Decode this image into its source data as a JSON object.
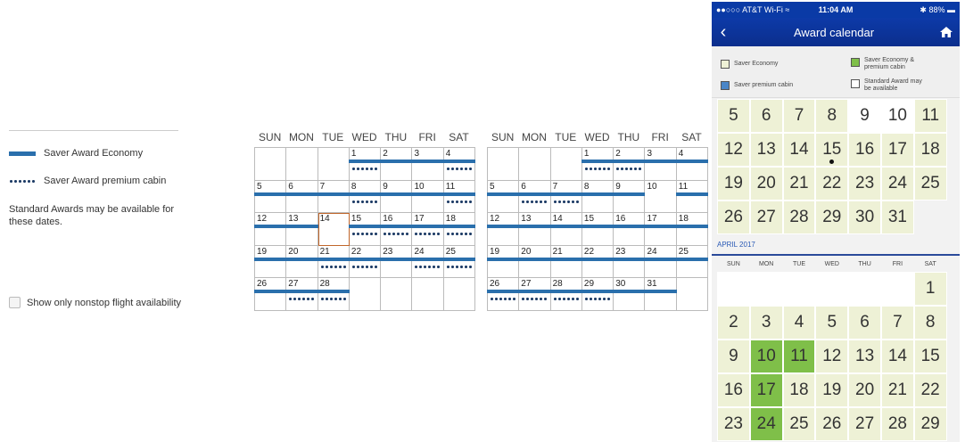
{
  "legend": {
    "economy": "Saver Award Economy",
    "premium": "Saver Award premium cabin",
    "standard": "Standard Awards may be available for these dates.",
    "nonstop": "Show only nonstop flight availability"
  },
  "calendar": {
    "days": [
      "SUN",
      "MON",
      "TUE",
      "WED",
      "THU",
      "FRI",
      "SAT"
    ],
    "feb": [
      [
        {
          "d": ""
        },
        {
          "d": ""
        },
        {
          "d": ""
        },
        {
          "d": "1",
          "e": 1,
          "p": 1
        },
        {
          "d": "2",
          "e": 1
        },
        {
          "d": "3",
          "e": 1
        },
        {
          "d": "4",
          "e": 1,
          "p": 1
        }
      ],
      [
        {
          "d": "5",
          "e": 1
        },
        {
          "d": "6",
          "e": 1
        },
        {
          "d": "7",
          "e": 1
        },
        {
          "d": "8",
          "e": 1,
          "p": 1
        },
        {
          "d": "9",
          "e": 1
        },
        {
          "d": "10",
          "e": 1
        },
        {
          "d": "11",
          "e": 1,
          "p": 1
        }
      ],
      [
        {
          "d": "12",
          "e": 1
        },
        {
          "d": "13",
          "e": 1
        },
        {
          "d": "14",
          "sel": 1
        },
        {
          "d": "15",
          "e": 1,
          "p": 1
        },
        {
          "d": "16",
          "e": 1,
          "p": 1
        },
        {
          "d": "17",
          "e": 1,
          "p": 1
        },
        {
          "d": "18",
          "e": 1,
          "p": 1
        }
      ],
      [
        {
          "d": "19",
          "e": 1
        },
        {
          "d": "20",
          "e": 1
        },
        {
          "d": "21",
          "e": 1,
          "p": 1
        },
        {
          "d": "22",
          "e": 1,
          "p": 1
        },
        {
          "d": "23",
          "e": 1
        },
        {
          "d": "24",
          "e": 1,
          "p": 1
        },
        {
          "d": "25",
          "e": 1,
          "p": 1
        }
      ],
      [
        {
          "d": "26",
          "e": 1
        },
        {
          "d": "27",
          "e": 1,
          "p": 1
        },
        {
          "d": "28",
          "e": 1,
          "p": 1
        },
        {
          "d": ""
        },
        {
          "d": ""
        },
        {
          "d": ""
        },
        {
          "d": ""
        }
      ]
    ],
    "mar": [
      [
        {
          "d": ""
        },
        {
          "d": ""
        },
        {
          "d": ""
        },
        {
          "d": "1",
          "e": 1,
          "p": 1
        },
        {
          "d": "2",
          "e": 1,
          "p": 1
        },
        {
          "d": "3",
          "e": 1
        },
        {
          "d": "4",
          "e": 1
        }
      ],
      [
        {
          "d": "5",
          "e": 1
        },
        {
          "d": "6",
          "e": 1,
          "p": 1
        },
        {
          "d": "7",
          "e": 1,
          "p": 1
        },
        {
          "d": "8",
          "e": 1
        },
        {
          "d": "9",
          "e": 1
        },
        {
          "d": "10"
        },
        {
          "d": "11",
          "e": 1
        }
      ],
      [
        {
          "d": "12",
          "e": 1
        },
        {
          "d": "13",
          "e": 1
        },
        {
          "d": "14",
          "e": 1
        },
        {
          "d": "15",
          "e": 1
        },
        {
          "d": "16",
          "e": 1
        },
        {
          "d": "17",
          "e": 1
        },
        {
          "d": "18",
          "e": 1
        }
      ],
      [
        {
          "d": "19",
          "e": 1
        },
        {
          "d": "20",
          "e": 1
        },
        {
          "d": "21",
          "e": 1
        },
        {
          "d": "22",
          "e": 1
        },
        {
          "d": "23",
          "e": 1
        },
        {
          "d": "24",
          "e": 1
        },
        {
          "d": "25",
          "e": 1
        }
      ],
      [
        {
          "d": "26",
          "e": 1,
          "p": 1
        },
        {
          "d": "27",
          "e": 1,
          "p": 1
        },
        {
          "d": "28",
          "e": 1,
          "p": 1
        },
        {
          "d": "29",
          "e": 1,
          "p": 1
        },
        {
          "d": "30",
          "e": 1
        },
        {
          "d": "31",
          "e": 1
        },
        {
          "d": ""
        }
      ]
    ]
  },
  "phone": {
    "status_left": "●●○○○ AT&T Wi-Fi ≈",
    "time": "11:04 AM",
    "status_right": "✱ 88% ▬",
    "title": "Award calendar",
    "legend": {
      "saver_economy": "Saver Economy",
      "saver_both": "Saver Economy & premium cabin",
      "saver_premium": "Saver premium cabin",
      "standard": "Standard Award may be available"
    },
    "colors": {
      "cream": "#eef1d6",
      "green": "#7fbf49",
      "blue": "#4a86c8"
    },
    "march_rows": [
      [
        {
          "d": "5",
          "s": "c"
        },
        {
          "d": "6",
          "s": "c"
        },
        {
          "d": "7",
          "s": "c"
        },
        {
          "d": "8",
          "s": "c"
        },
        {
          "d": "9",
          "s": "w"
        },
        {
          "d": "10",
          "s": "w"
        },
        {
          "d": "11",
          "s": "c"
        }
      ],
      [
        {
          "d": "12",
          "s": "c"
        },
        {
          "d": "13",
          "s": "c"
        },
        {
          "d": "14",
          "s": "c"
        },
        {
          "d": "15",
          "s": "c",
          "dot": 1
        },
        {
          "d": "16",
          "s": "c"
        },
        {
          "d": "17",
          "s": "c"
        },
        {
          "d": "18",
          "s": "c"
        }
      ],
      [
        {
          "d": "19",
          "s": "c"
        },
        {
          "d": "20",
          "s": "c"
        },
        {
          "d": "21",
          "s": "c"
        },
        {
          "d": "22",
          "s": "c"
        },
        {
          "d": "23",
          "s": "c"
        },
        {
          "d": "24",
          "s": "c"
        },
        {
          "d": "25",
          "s": "c"
        }
      ],
      [
        {
          "d": "26",
          "s": "c"
        },
        {
          "d": "27",
          "s": "c"
        },
        {
          "d": "28",
          "s": "c"
        },
        {
          "d": "29",
          "s": "c"
        },
        {
          "d": "30",
          "s": "c"
        },
        {
          "d": "31",
          "s": "c"
        },
        {
          "d": "",
          "s": "e"
        }
      ]
    ],
    "april_label": "APRIL 2017",
    "april_days": [
      "SUN",
      "MON",
      "TUE",
      "WED",
      "THU",
      "FRI",
      "SAT"
    ],
    "april_rows": [
      [
        {
          "d": "",
          "s": "w"
        },
        {
          "d": "",
          "s": "w"
        },
        {
          "d": "",
          "s": "w"
        },
        {
          "d": "",
          "s": "w"
        },
        {
          "d": "",
          "s": "w"
        },
        {
          "d": "",
          "s": "w"
        },
        {
          "d": "1",
          "s": "c"
        }
      ],
      [
        {
          "d": "2",
          "s": "c"
        },
        {
          "d": "3",
          "s": "c"
        },
        {
          "d": "4",
          "s": "c"
        },
        {
          "d": "5",
          "s": "c"
        },
        {
          "d": "6",
          "s": "c"
        },
        {
          "d": "7",
          "s": "c"
        },
        {
          "d": "8",
          "s": "c"
        }
      ],
      [
        {
          "d": "9",
          "s": "c"
        },
        {
          "d": "10",
          "s": "g"
        },
        {
          "d": "11",
          "s": "g"
        },
        {
          "d": "12",
          "s": "c"
        },
        {
          "d": "13",
          "s": "c"
        },
        {
          "d": "14",
          "s": "c"
        },
        {
          "d": "15",
          "s": "c"
        }
      ],
      [
        {
          "d": "16",
          "s": "c"
        },
        {
          "d": "17",
          "s": "g"
        },
        {
          "d": "18",
          "s": "c"
        },
        {
          "d": "19",
          "s": "c"
        },
        {
          "d": "20",
          "s": "c"
        },
        {
          "d": "21",
          "s": "c"
        },
        {
          "d": "22",
          "s": "c"
        }
      ],
      [
        {
          "d": "23",
          "s": "c"
        },
        {
          "d": "24",
          "s": "g"
        },
        {
          "d": "25",
          "s": "c"
        },
        {
          "d": "26",
          "s": "c"
        },
        {
          "d": "27",
          "s": "c"
        },
        {
          "d": "28",
          "s": "c"
        },
        {
          "d": "29",
          "s": "c"
        }
      ]
    ]
  }
}
